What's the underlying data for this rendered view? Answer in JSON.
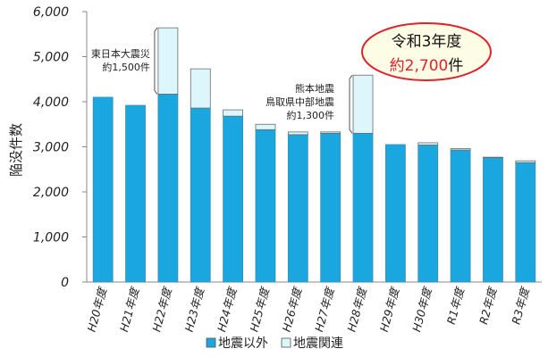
{
  "chart_data": {
    "type": "bar",
    "stacked": true,
    "ylabel": "陥没件数",
    "xlabel": "",
    "ylim": [
      0,
      6000
    ],
    "yticks": [
      0,
      1000,
      2000,
      3000,
      4000,
      5000,
      6000
    ],
    "ytick_labels": [
      "0",
      "1,000",
      "2,000",
      "3,000",
      "4,000",
      "5,000",
      "6,000"
    ],
    "grid": false,
    "legend_position": "bottom",
    "categories": [
      "H20年度",
      "H21年度",
      "H22年度",
      "H23年度",
      "H24年度",
      "H25年度",
      "H26年度",
      "H27年度",
      "H28年度",
      "H29年度",
      "H30年度",
      "R1年度",
      "R2年度",
      "R3年度"
    ],
    "series": [
      {
        "name": "地震以外",
        "color": "#1aa6df",
        "values": [
          4100,
          3920,
          4170,
          3860,
          3680,
          3380,
          3270,
          3300,
          3300,
          3050,
          3040,
          2930,
          2760,
          2650
        ]
      },
      {
        "name": "地震関連",
        "color": "#ddf6fb",
        "values": [
          0,
          0,
          1470,
          870,
          140,
          120,
          60,
          30,
          1290,
          0,
          50,
          30,
          10,
          40
        ]
      }
    ],
    "annotations": [
      {
        "lines": [
          "東日本大震災",
          "約1,500件"
        ],
        "category": "H22年度"
      },
      {
        "lines": [
          "熊本地震",
          "鳥取県中部地震",
          "約1,300件"
        ],
        "category": "H28年度"
      }
    ],
    "callout": {
      "line1": "令和3年度",
      "line2_value": "約2,700",
      "line2_unit": "件",
      "border_color": "#e0202a",
      "fill_color": "#fdfde6",
      "value_color": "#e0202a"
    }
  }
}
